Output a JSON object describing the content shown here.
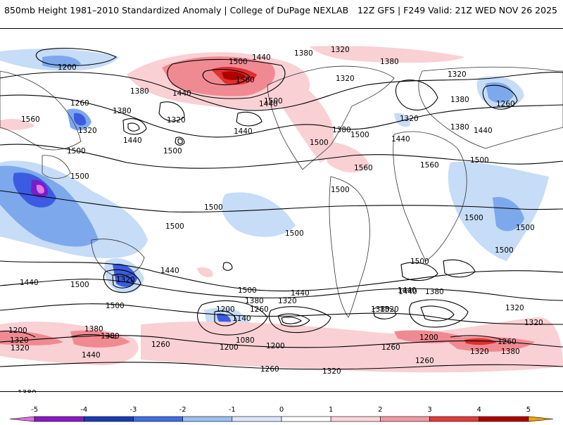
{
  "header": {
    "title": "850mb Height 1981–2010 Standardized Anomaly | College of DuPage NEXLAB",
    "run_info": "12Z GFS | F249 Valid: 21Z WED NOV 26 2025"
  },
  "map": {
    "contour_labels": [
      "1200",
      "1440",
      "1380",
      "1320",
      "1380",
      "1500",
      "1440",
      "1380",
      "1320",
      "1380",
      "1320",
      "1260",
      "1380",
      "1440",
      "1320",
      "1500",
      "1560",
      "1320",
      "1260",
      "1380",
      "1560",
      "1320",
      "1500",
      "1500",
      "1440",
      "1440",
      "1380",
      "1500",
      "1440",
      "1500",
      "1500",
      "1440",
      "1500",
      "1560",
      "1500",
      "1560",
      "1500",
      "1500",
      "1500",
      "1500",
      "1500",
      "1500",
      "1500",
      "1500",
      "1320",
      "1440",
      "1500",
      "1440",
      "1500",
      "1440",
      "1380",
      "1440",
      "1380",
      "1320",
      "1200",
      "1380",
      "1260",
      "1140",
      "1320",
      "1320",
      "1080",
      "1200",
      "1260",
      "1200",
      "1260",
      "1320",
      "1380",
      "1440",
      "1380",
      "1260",
      "1320",
      "1260",
      "1200",
      "1320",
      "1320",
      "1380",
      "1260",
      "1320",
      "1380",
      "1200",
      "1440"
    ],
    "colors": {
      "anom_neg_1": "#c6dcf7",
      "anom_neg_2": "#7da8ec",
      "anom_neg_3": "#3b5ce0",
      "anom_neg_4": "#7a1cc8",
      "anom_neg_5": "#e07ae0",
      "anom_pos_1": "#f9d0d4",
      "anom_pos_2": "#f08a92",
      "anom_pos_3": "#e03030",
      "anom_pos_4": "#b00000"
    }
  },
  "colorbar": {
    "ticks": [
      "-5",
      "-4",
      "-3",
      "-2",
      "-1",
      "0",
      "1",
      "2",
      "3",
      "4",
      "5"
    ],
    "colors": [
      "#e070e0",
      "#8a18c8",
      "#1a3ab8",
      "#3f6ee6",
      "#9cc0f2",
      "#d8e8fb",
      "#ffffff",
      "#fbd6da",
      "#f29aa2",
      "#e23a3a",
      "#b00000",
      "#f5a000"
    ]
  }
}
